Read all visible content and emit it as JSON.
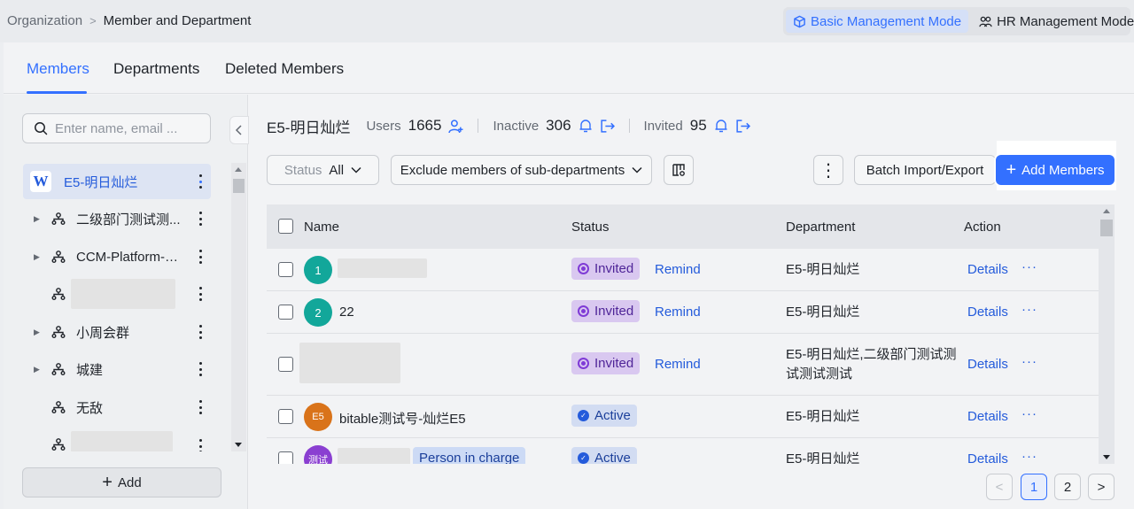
{
  "breadcrumb": {
    "parent": "Organization",
    "separator": ">",
    "current": "Member and Department"
  },
  "modes": {
    "basic": "Basic Management Mode",
    "hr": "HR Management Mode"
  },
  "tabs": [
    "Members",
    "Departments",
    "Deleted Members"
  ],
  "sidebar": {
    "search_placeholder": "Enter name, email ...",
    "root": {
      "logo": "W",
      "label": "E5-明日灿烂"
    },
    "items": [
      {
        "label": "二级部门测试测...",
        "expandable": true
      },
      {
        "label": "CCM-Platform-U...",
        "expandable": true
      },
      {
        "label": "",
        "expandable": false
      },
      {
        "label": "小周会群",
        "expandable": true
      },
      {
        "label": "城建",
        "expandable": true
      },
      {
        "label": "无敌",
        "expandable": false
      },
      {
        "label": "",
        "expandable": false
      }
    ],
    "add_label": "Add"
  },
  "header": {
    "dept": "E5-明日灿烂",
    "users_label": "Users",
    "users_count": "1665",
    "inactive_label": "Inactive",
    "inactive_count": "306",
    "invited_label": "Invited",
    "invited_count": "95"
  },
  "toolbar": {
    "status_label": "Status",
    "status_value": "All",
    "scope_value": "Exclude members of sub-departments",
    "more": "⋮",
    "batch_label": "Batch Import/Export",
    "add_members_label": "Add Members"
  },
  "table": {
    "columns": [
      "Name",
      "Status",
      "Department",
      "Action"
    ],
    "rows": [
      {
        "avatar": "1",
        "avatar_color": "#12a79a",
        "name": "",
        "status": "Invited",
        "remind": "Remind",
        "department": "E5-明日灿烂",
        "details": "Details",
        "more": "···"
      },
      {
        "avatar": "2",
        "avatar_color": "#12a79a",
        "name": "22",
        "status": "Invited",
        "remind": "Remind",
        "department": "E5-明日灿烂",
        "details": "Details",
        "more": "···"
      },
      {
        "avatar": "",
        "avatar_color": "",
        "name": "",
        "status": "Invited",
        "remind": "Remind",
        "department": "E5-明日灿烂,二级部门测试测试测试测试",
        "details": "Details",
        "more": "···"
      },
      {
        "avatar": "E5",
        "avatar_color": "#d9731a",
        "name": "bitable测试号-灿烂E5",
        "status": "Active",
        "remind": "",
        "department": "E5-明日灿烂",
        "details": "Details",
        "more": "···"
      },
      {
        "avatar": "测试",
        "avatar_color": "#8a3fd1",
        "name": "",
        "tag": "Person in charge",
        "status": "Active",
        "remind": "",
        "department": "E5-明日灿烂",
        "details": "Details",
        "more": "···"
      }
    ]
  },
  "pagination": {
    "prev": "<",
    "pages": [
      "1",
      "2"
    ],
    "current": "1",
    "next": ">"
  }
}
